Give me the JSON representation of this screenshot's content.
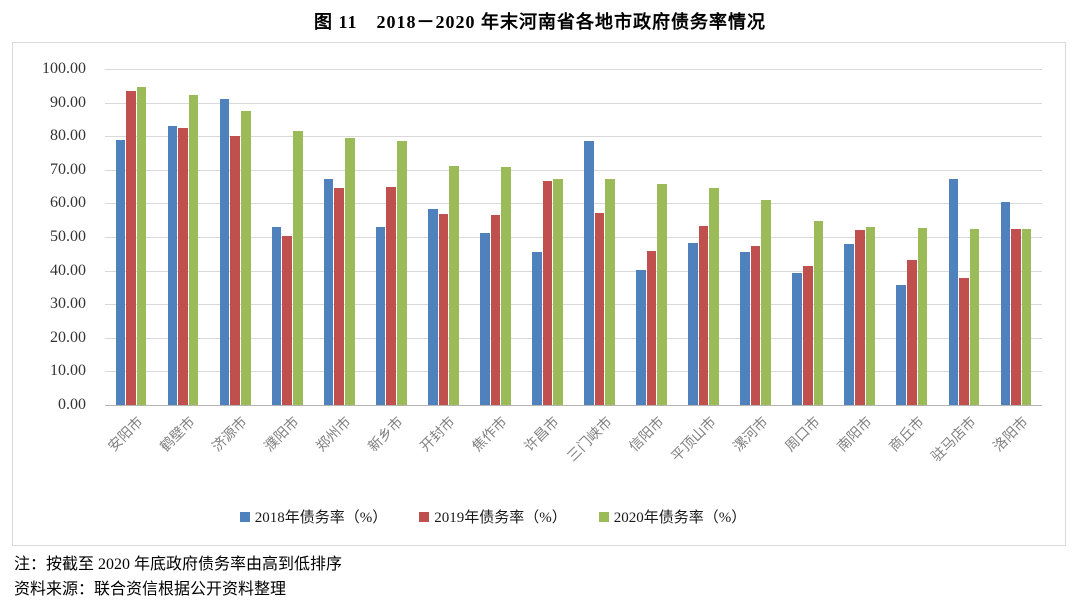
{
  "page_title": "图 11　2018－2020 年末河南省各地市政府债务率情况",
  "notes": {
    "line1": "注：按截至 2020 年底政府债务率由高到低排序",
    "line2": "资料来源：联合资信根据公开资料整理"
  },
  "colors": {
    "series_2018": "#4F81BD",
    "series_2019": "#C0504D",
    "series_2020": "#9BBB59",
    "gridline": "#d9d9d9",
    "axis_line": "#b3b3b3",
    "frame_border": "#d9d9d9",
    "y_label_text": "#333333",
    "x_label_text": "#808080"
  },
  "chart_data": {
    "type": "bar",
    "title": "图 11　2018－2020 年末河南省各地市政府债务率情况",
    "xlabel": "",
    "ylabel": "",
    "ylim": [
      0,
      100
    ],
    "ytick_step": 10,
    "ytick_labels": [
      "100.00",
      "90.00",
      "80.00",
      "70.00",
      "60.00",
      "50.00",
      "40.00",
      "30.00",
      "20.00",
      "10.00",
      "0.00"
    ],
    "grid": true,
    "legend_position": "bottom",
    "categories": [
      "安阳市",
      "鹤壁市",
      "济源市",
      "濮阳市",
      "郑州市",
      "新乡市",
      "开封市",
      "焦作市",
      "许昌市",
      "三门峡市",
      "信阳市",
      "平顶山市",
      "漯河市",
      "周口市",
      "南阳市",
      "商丘市",
      "驻马店市",
      "洛阳市"
    ],
    "series": [
      {
        "name": "2018年债务率（%）",
        "color": "#4F81BD",
        "values": [
          78.9,
          83.0,
          91.2,
          53.1,
          67.2,
          53.0,
          58.4,
          51.3,
          45.4,
          78.6,
          40.2,
          48.1,
          45.6,
          39.2,
          48.0,
          35.8,
          67.3,
          60.5
        ]
      },
      {
        "name": "2019年债务率（%）",
        "color": "#C0504D",
        "values": [
          93.6,
          82.3,
          80.2,
          50.3,
          64.7,
          64.9,
          56.8,
          56.6,
          66.6,
          57.2,
          45.7,
          53.4,
          47.3,
          41.3,
          52.0,
          43.1,
          37.8,
          52.4
        ]
      },
      {
        "name": "2020年债务率（%）",
        "color": "#9BBB59",
        "values": [
          94.5,
          92.3,
          87.6,
          81.6,
          79.6,
          78.5,
          71.2,
          70.9,
          67.4,
          67.4,
          65.9,
          64.7,
          61.0,
          54.7,
          52.9,
          52.8,
          52.4,
          52.4
        ]
      }
    ]
  }
}
